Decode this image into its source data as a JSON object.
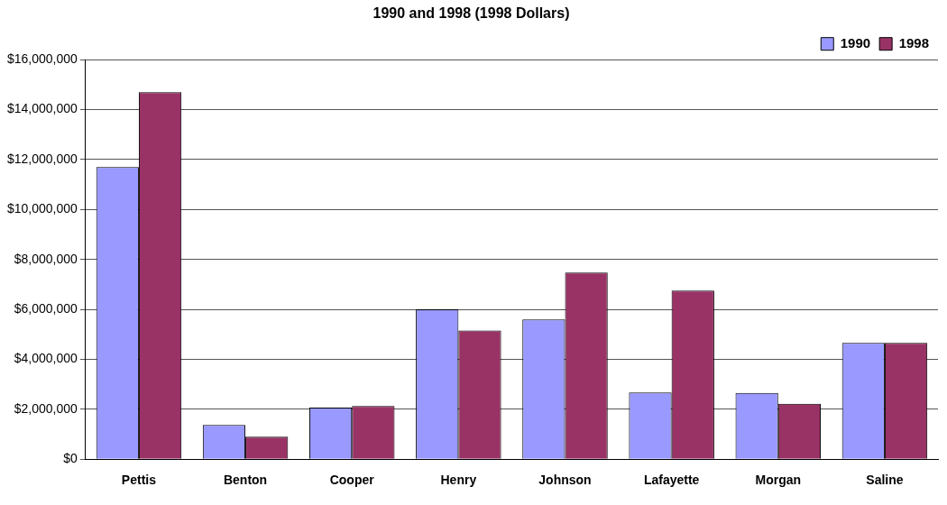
{
  "chart_data": {
    "type": "bar",
    "title": "1990 and 1998 (1998 Dollars)",
    "categories": [
      "Pettis",
      "Benton",
      "Cooper",
      "Henry",
      "Johnson",
      "Lafayette",
      "Morgan",
      "Saline"
    ],
    "series": [
      {
        "name": "1990",
        "color": "#9999ff",
        "values": [
          11700000,
          1370000,
          2070000,
          6000000,
          5600000,
          2670000,
          2650000,
          4660000
        ]
      },
      {
        "name": "1998",
        "color": "#993366",
        "values": [
          14700000,
          900000,
          2130000,
          5150000,
          7470000,
          6750000,
          2220000,
          4660000
        ]
      }
    ],
    "ylim": [
      0,
      16000000
    ],
    "yticks": [
      {
        "value": 0,
        "label": "$0"
      },
      {
        "value": 2000000,
        "label": "$2,000,000"
      },
      {
        "value": 4000000,
        "label": "$4,000,000"
      },
      {
        "value": 6000000,
        "label": "$6,000,000"
      },
      {
        "value": 8000000,
        "label": "$8,000,000"
      },
      {
        "value": 10000000,
        "label": "$10,000,000"
      },
      {
        "value": 12000000,
        "label": "$12,000,000"
      },
      {
        "value": 14000000,
        "label": "$14,000,000"
      },
      {
        "value": 16000000,
        "label": "$16,000,000"
      }
    ],
    "grid": "y",
    "legend": "top right"
  }
}
